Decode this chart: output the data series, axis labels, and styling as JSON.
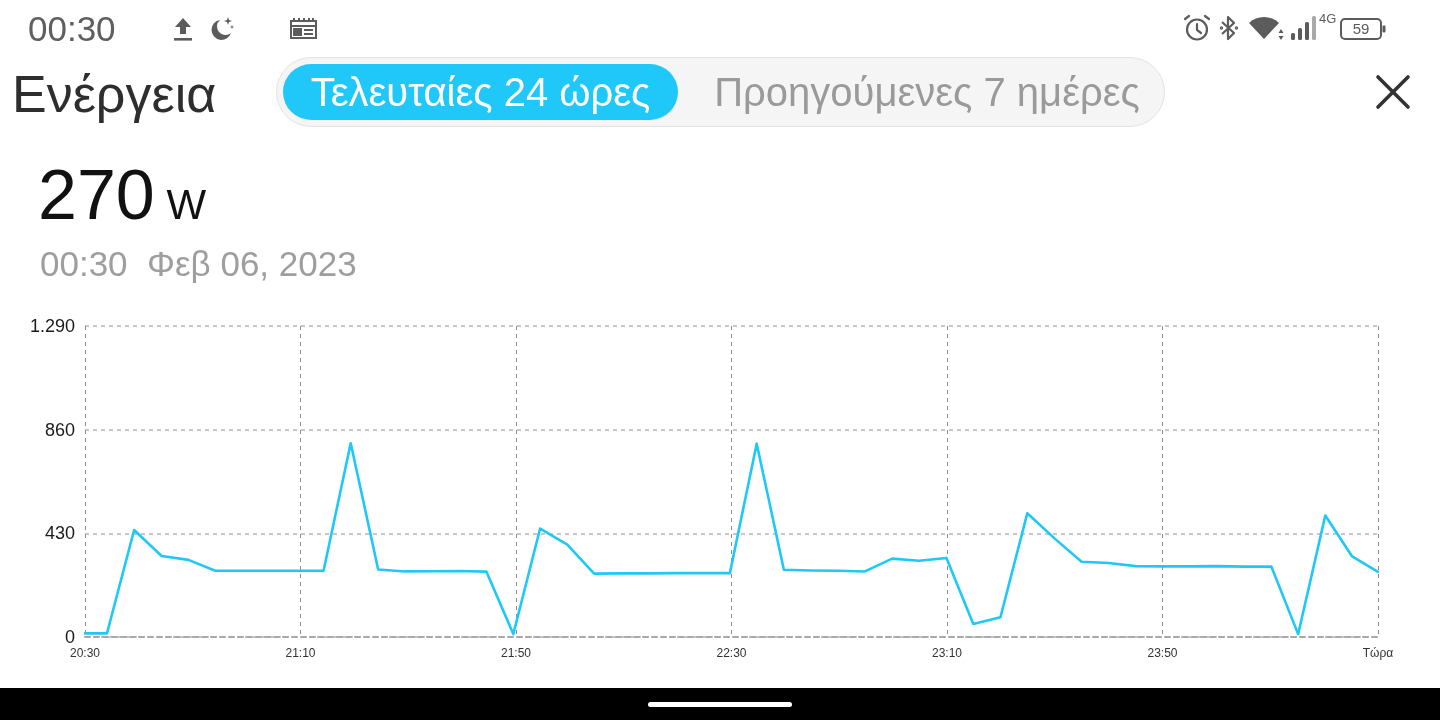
{
  "chart_data": {
    "type": "line",
    "title": "Ενέργεια",
    "annotations": [
      "Τελευταίες 24 ώρες",
      "Προηγούμενες 7 ημέρες",
      "270 W",
      "00:30  Φεβ 06, 2023",
      "00:30",
      "4G",
      "59"
    ],
    "x": [
      20.5,
      20.568,
      20.652,
      20.737,
      20.82,
      20.903,
      20.987,
      21.072,
      21.155,
      21.238,
      21.322,
      21.407,
      21.49,
      21.573,
      21.657,
      21.742,
      21.825,
      21.908,
      21.992,
      22.075,
      22.16,
      22.243,
      22.327,
      22.41,
      22.495,
      22.578,
      22.662,
      22.745,
      22.83,
      22.913,
      22.997,
      23.08,
      23.165,
      23.248,
      23.332,
      23.415,
      23.5,
      23.583,
      23.667,
      23.75,
      23.835,
      23.918,
      24.002,
      24.085,
      24.17,
      24.253,
      24.337,
      24.42,
      24.5
    ],
    "values": [
      15,
      15,
      444,
      336,
      320,
      275,
      275,
      275,
      275,
      275,
      804,
      280,
      272,
      273,
      274,
      271,
      12,
      450,
      383,
      263,
      264,
      264,
      265,
      265,
      265,
      802,
      279,
      276,
      275,
      272,
      325,
      316,
      328,
      54,
      82,
      513,
      408,
      312,
      307,
      294,
      293,
      293,
      294,
      292,
      292,
      12,
      504,
      334,
      270
    ],
    "color": "#1fc8f7",
    "line_style": "solid",
    "xlim": [
      20.5,
      24.5
    ],
    "xticks": [
      {
        "value": 20.5,
        "label": "20:30"
      },
      {
        "value": 21.1667,
        "label": "21:10"
      },
      {
        "value": 21.8333,
        "label": "21:50"
      },
      {
        "value": 22.5,
        "label": "22:30"
      },
      {
        "value": 23.1667,
        "label": "23:10"
      },
      {
        "value": 23.8333,
        "label": "23:50"
      },
      {
        "value": 24.5,
        "label": "Τώρα"
      }
    ],
    "ylim": [
      0,
      1290
    ],
    "yticks": [
      0,
      430,
      860,
      {
        "value": 1290,
        "label": "1.290"
      }
    ],
    "grid": true
  }
}
